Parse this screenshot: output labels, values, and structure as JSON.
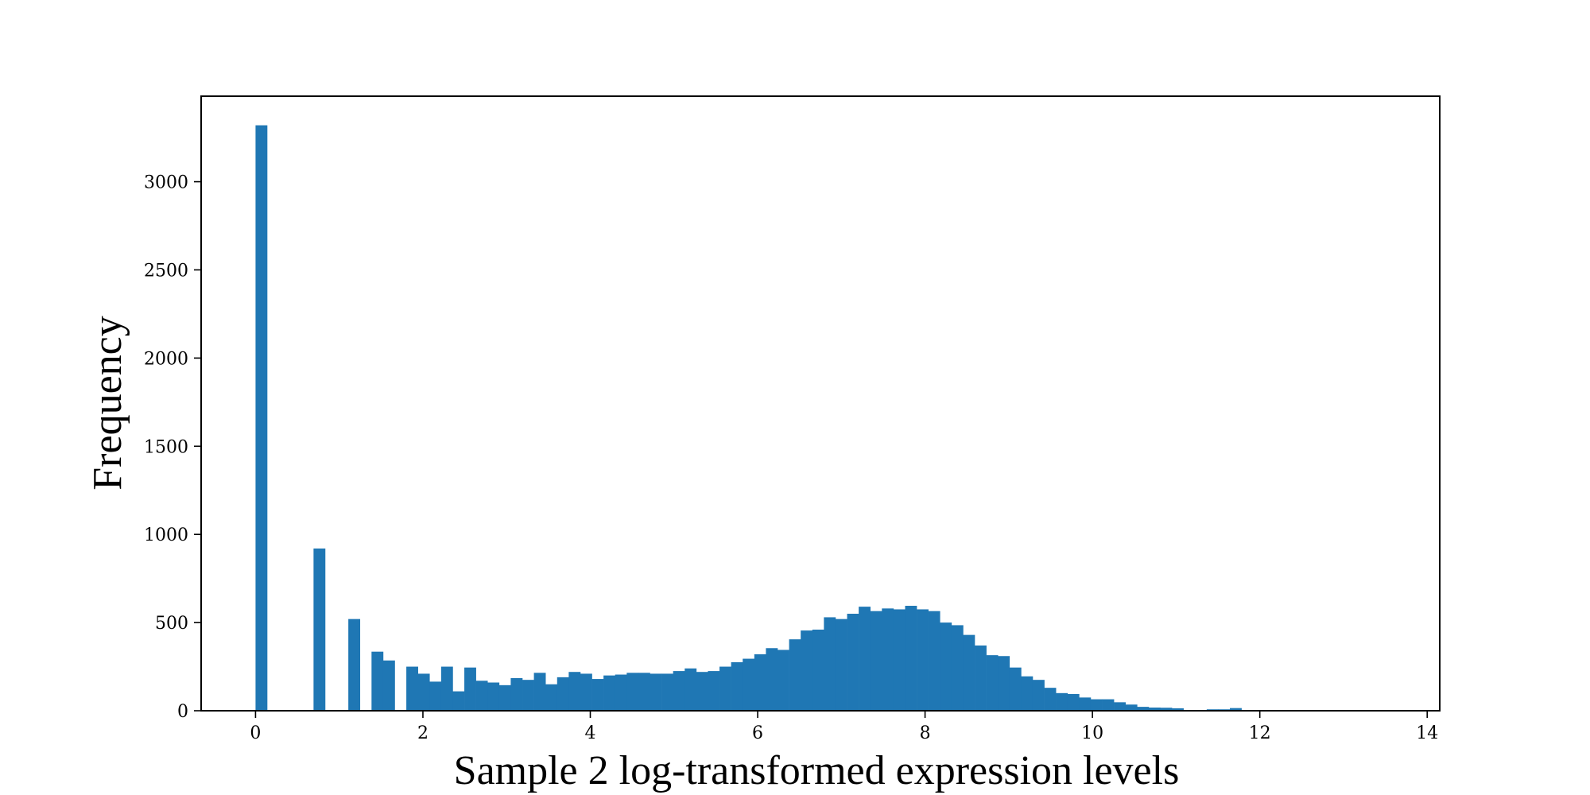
{
  "chart_data": {
    "type": "bar",
    "title": "",
    "xlabel": "Sample 2 log-transformed expression levels",
    "ylabel": "Frequency",
    "xlim": [
      -0.65,
      14.15
    ],
    "ylim": [
      0,
      3485
    ],
    "xticks": [
      0,
      2,
      4,
      6,
      8,
      10,
      12,
      14
    ],
    "yticks": [
      0,
      500,
      1000,
      1500,
      2000,
      2500,
      3000
    ],
    "grid": false,
    "bar_color": "#1f77b4",
    "bin_start": 0.0,
    "bin_width": 0.1386,
    "series": [
      {
        "values": [
          3320,
          0,
          0,
          0,
          0,
          920,
          0,
          0,
          520,
          0,
          335,
          285,
          0,
          250,
          210,
          165,
          250,
          110,
          245,
          170,
          160,
          145,
          185,
          175,
          215,
          150,
          190,
          220,
          210,
          180,
          200,
          205,
          215,
          215,
          210,
          210,
          225,
          240,
          220,
          225,
          250,
          275,
          295,
          320,
          355,
          345,
          405,
          455,
          460,
          530,
          520,
          550,
          590,
          565,
          580,
          575,
          595,
          575,
          565,
          500,
          485,
          430,
          370,
          315,
          310,
          245,
          195,
          175,
          130,
          100,
          95,
          75,
          65,
          65,
          48,
          35,
          22,
          18,
          17,
          14,
          0,
          0,
          8,
          8,
          15,
          0,
          0,
          0,
          0,
          0,
          0,
          0,
          0,
          0,
          0,
          0,
          0,
          0,
          0,
          0,
          2
        ]
      }
    ]
  }
}
